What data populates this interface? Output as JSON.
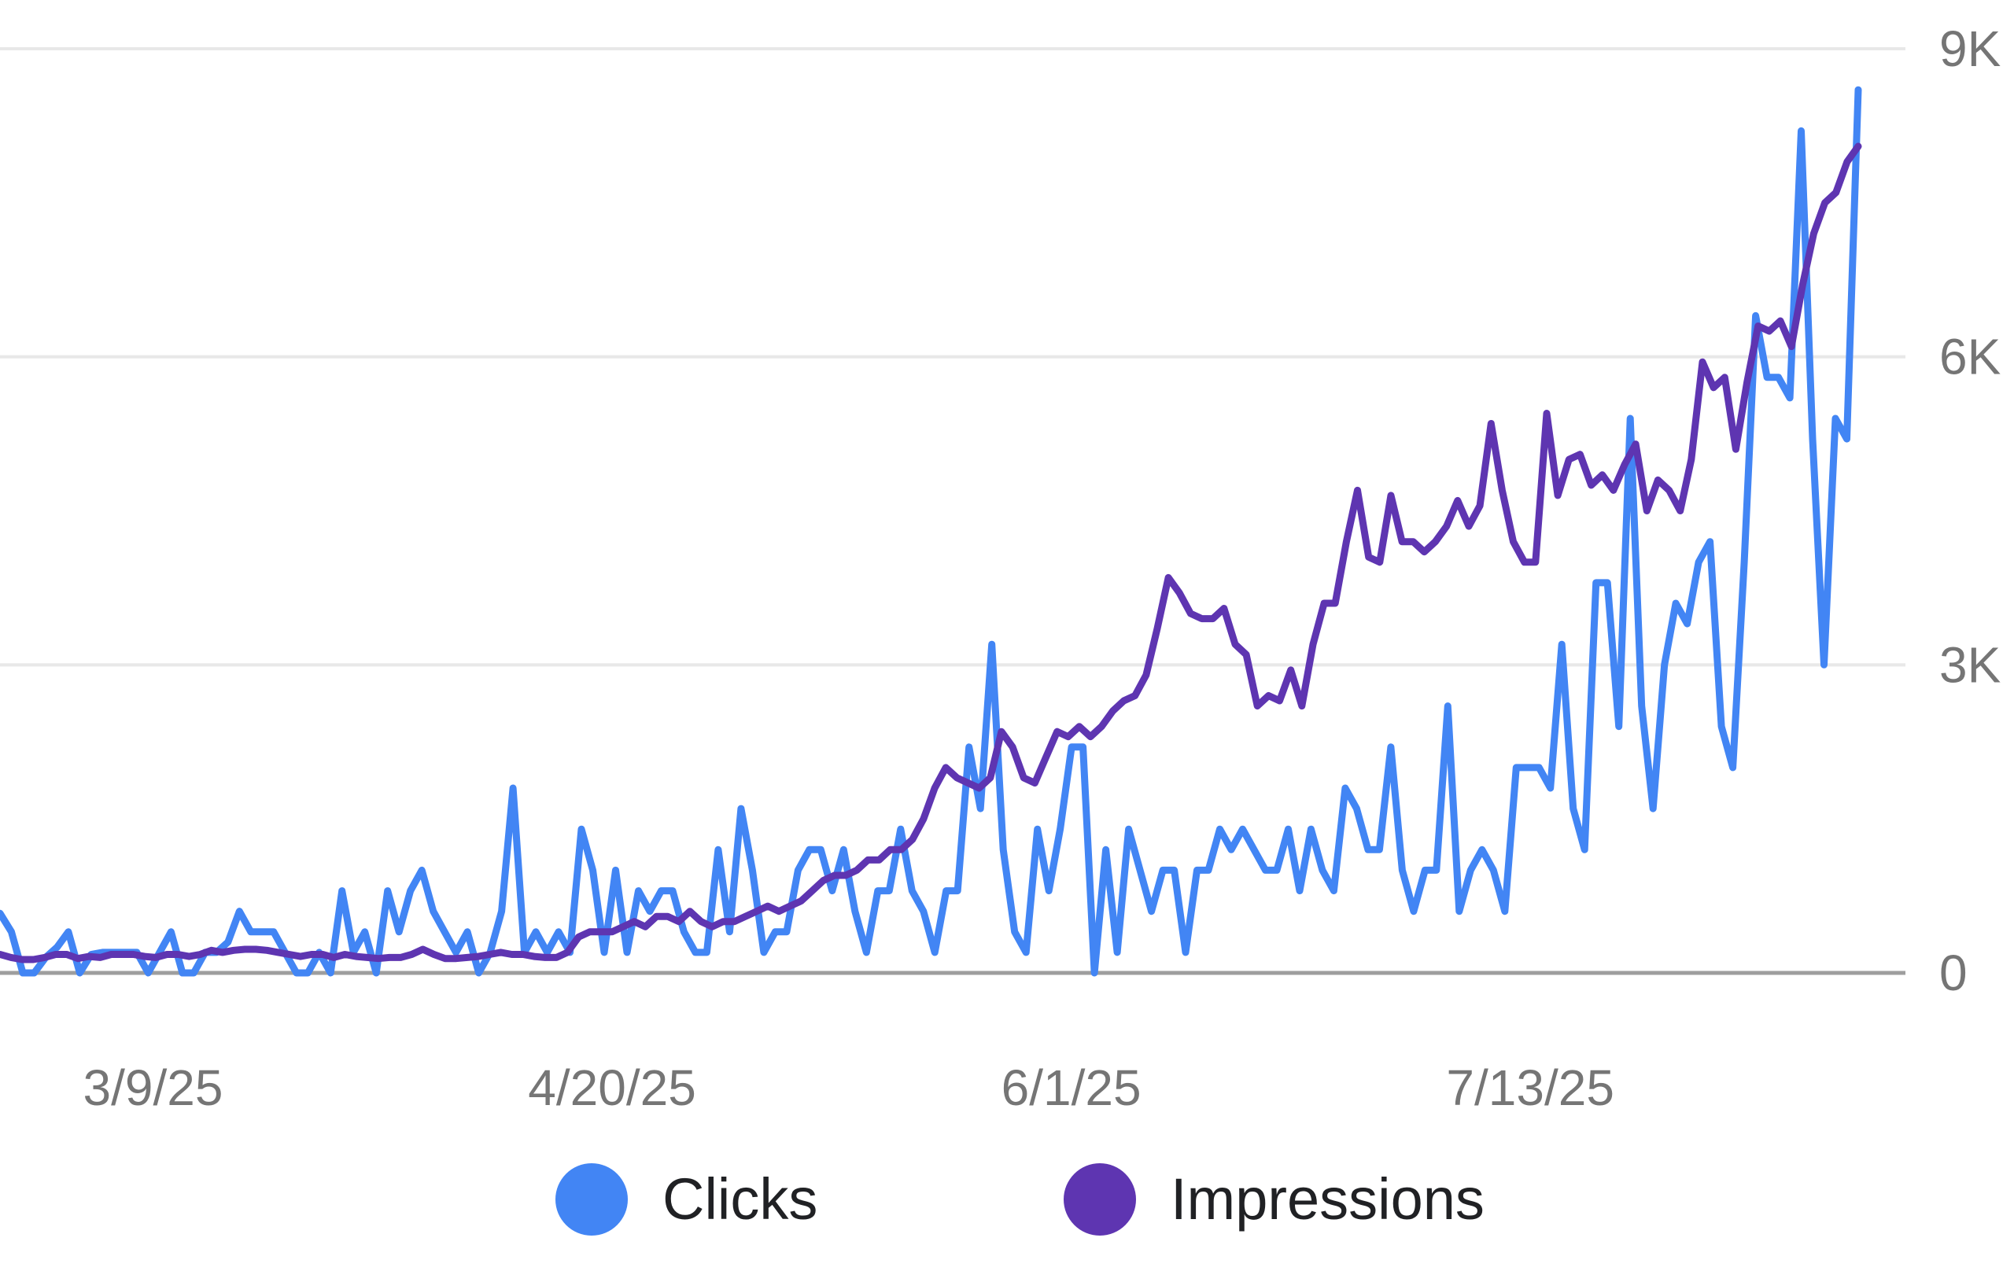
{
  "chart_data": {
    "type": "line",
    "title": "",
    "xlabel": "",
    "ylabel": "",
    "x_start": "2/23/25",
    "x_end": "8/12/25",
    "x_ticks": [
      "3/9/25",
      "4/20/25",
      "6/1/25",
      "7/13/25"
    ],
    "y_ticks": [
      "0",
      "3K",
      "6K",
      "9K"
    ],
    "y_tick_values": [
      0,
      3000,
      6000,
      9000
    ],
    "ylim": [
      0,
      9000
    ],
    "y_axis_side": "right",
    "grid": true,
    "legend_position": "bottom-center",
    "series": [
      {
        "name": "Clicks",
        "color": "#4285f4",
        "values": [
          580,
          400,
          0,
          0,
          150,
          250,
          400,
          0,
          180,
          200,
          200,
          200,
          200,
          0,
          200,
          400,
          0,
          0,
          200,
          200,
          300,
          600,
          400,
          400,
          400,
          200,
          0,
          0,
          200,
          0,
          800,
          200,
          400,
          0,
          800,
          400,
          800,
          1000,
          600,
          400,
          200,
          400,
          0,
          200,
          600,
          1800,
          200,
          400,
          200,
          400,
          200,
          1400,
          1000,
          200,
          1000,
          200,
          800,
          600,
          800,
          800,
          400,
          200,
          200,
          1200,
          400,
          1600,
          1000,
          200,
          400,
          400,
          1000,
          1200,
          1200,
          800,
          1200,
          600,
          200,
          800,
          800,
          1400,
          800,
          600,
          200,
          800,
          800,
          2200,
          1600,
          3200,
          1200,
          400,
          200,
          1400,
          800,
          1400,
          2200,
          2200,
          0,
          1200,
          200,
          1400,
          1000,
          600,
          1000,
          1000,
          200,
          1000,
          1000,
          1400,
          1200,
          1400,
          1200,
          1000,
          1000,
          1400,
          800,
          1400,
          1000,
          800,
          1800,
          1600,
          1200,
          1200,
          2200,
          1000,
          600,
          1000,
          1000,
          2600,
          600,
          1000,
          1200,
          1000,
          600,
          2000,
          2000,
          2000,
          1800,
          3200,
          1600,
          1200,
          3800,
          3800,
          2400,
          5400,
          2600,
          1600,
          3000,
          3600,
          3400,
          4000,
          4200,
          2400,
          2000,
          4000,
          6400,
          5800,
          5800,
          5600,
          8200,
          5200,
          3000,
          5400,
          5200,
          8600
        ]
      },
      {
        "name": "Impressions",
        "color": "#5e35b1",
        "values": [
          180,
          150,
          130,
          130,
          150,
          180,
          180,
          140,
          160,
          150,
          180,
          180,
          180,
          160,
          150,
          180,
          180,
          160,
          180,
          220,
          200,
          220,
          230,
          230,
          220,
          200,
          180,
          160,
          180,
          180,
          150,
          180,
          160,
          150,
          140,
          150,
          150,
          180,
          230,
          180,
          140,
          140,
          150,
          160,
          180,
          200,
          180,
          180,
          160,
          150,
          150,
          200,
          350,
          400,
          400,
          400,
          450,
          500,
          450,
          550,
          550,
          500,
          600,
          500,
          450,
          500,
          500,
          550,
          600,
          650,
          600,
          650,
          700,
          800,
          900,
          950,
          950,
          1000,
          1100,
          1100,
          1200,
          1200,
          1300,
          1500,
          1800,
          2000,
          1900,
          1850,
          1800,
          1900,
          2350,
          2200,
          1900,
          1850,
          2100,
          2350,
          2300,
          2400,
          2300,
          2400,
          2550,
          2650,
          2700,
          2900,
          3350,
          3850,
          3700,
          3500,
          3450,
          3450,
          3550,
          3200,
          3100,
          2600,
          2700,
          2650,
          2950,
          2600,
          3200,
          3600,
          3600,
          4200,
          4700,
          4050,
          4000,
          4650,
          4200,
          4200,
          4100,
          4200,
          4350,
          4600,
          4350,
          4550,
          5350,
          4700,
          4200,
          4000,
          4000,
          5450,
          4650,
          5000,
          5050,
          4750,
          4850,
          4700,
          4950,
          5150,
          4500,
          4800,
          4700,
          4500,
          5000,
          5950,
          5700,
          5800,
          5100,
          5750,
          6300,
          6250,
          6350,
          6100,
          6700,
          7200,
          7500,
          7600,
          7900,
          8050
        ]
      }
    ]
  }
}
